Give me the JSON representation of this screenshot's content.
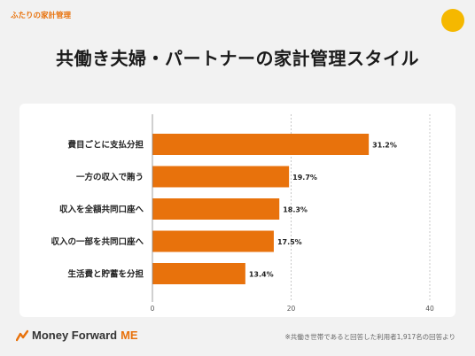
{
  "header": {
    "label": "ふたりの家計管理"
  },
  "title": "共働き夫婦・パートナーの家計管理スタイル",
  "chart_data": {
    "type": "bar",
    "orientation": "horizontal",
    "categories": [
      "費目ごとに支払分担",
      "一方の収入で賄う",
      "収入を全額共同口座へ",
      "収入の一部を共同口座へ",
      "生活費と貯蓄を分担"
    ],
    "values": [
      31.2,
      19.7,
      18.3,
      17.5,
      13.4
    ],
    "value_labels": [
      "31.2%",
      "19.7%",
      "18.3%",
      "17.5%",
      "13.4%"
    ],
    "xlim": [
      0,
      40
    ],
    "xticks": [
      "0",
      "20",
      "40"
    ],
    "grid": true,
    "bar_color": "#e8720c"
  },
  "footer": {
    "brand": "Money Forward",
    "brand_suffix": "ME",
    "note": "※共働き世帯であると回答した利用者1,917名の回答より"
  }
}
